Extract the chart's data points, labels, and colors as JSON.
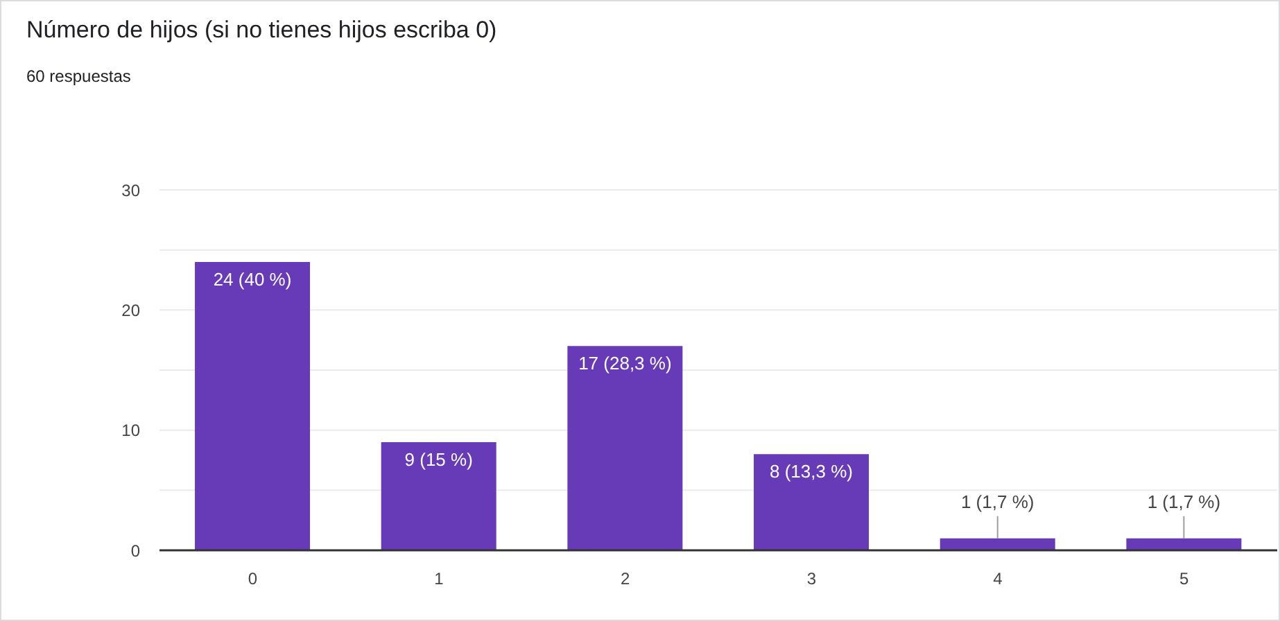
{
  "chart_data": {
    "type": "bar",
    "title": "Número de hijos (si no tienes hijos escriba 0)",
    "subtitle": "60 respuestas",
    "categories": [
      "0",
      "1",
      "2",
      "3",
      "4",
      "5"
    ],
    "values": [
      24,
      9,
      17,
      8,
      1,
      1
    ],
    "color": "#673ab7",
    "value_labels": [
      "24 (40 %)",
      "9 (15 %)",
      "17 (28,3 %)",
      "8 (13,3 %)",
      "1 (1,7 %)",
      "1 (1,7 %)"
    ],
    "ylim": [
      0,
      30
    ],
    "yticks": [
      0,
      {
        "value": 5,
        "label": null
      },
      10,
      {
        "value": 15,
        "label": null
      },
      20,
      {
        "value": 25,
        "label": null
      },
      30
    ],
    "grid": "y"
  }
}
